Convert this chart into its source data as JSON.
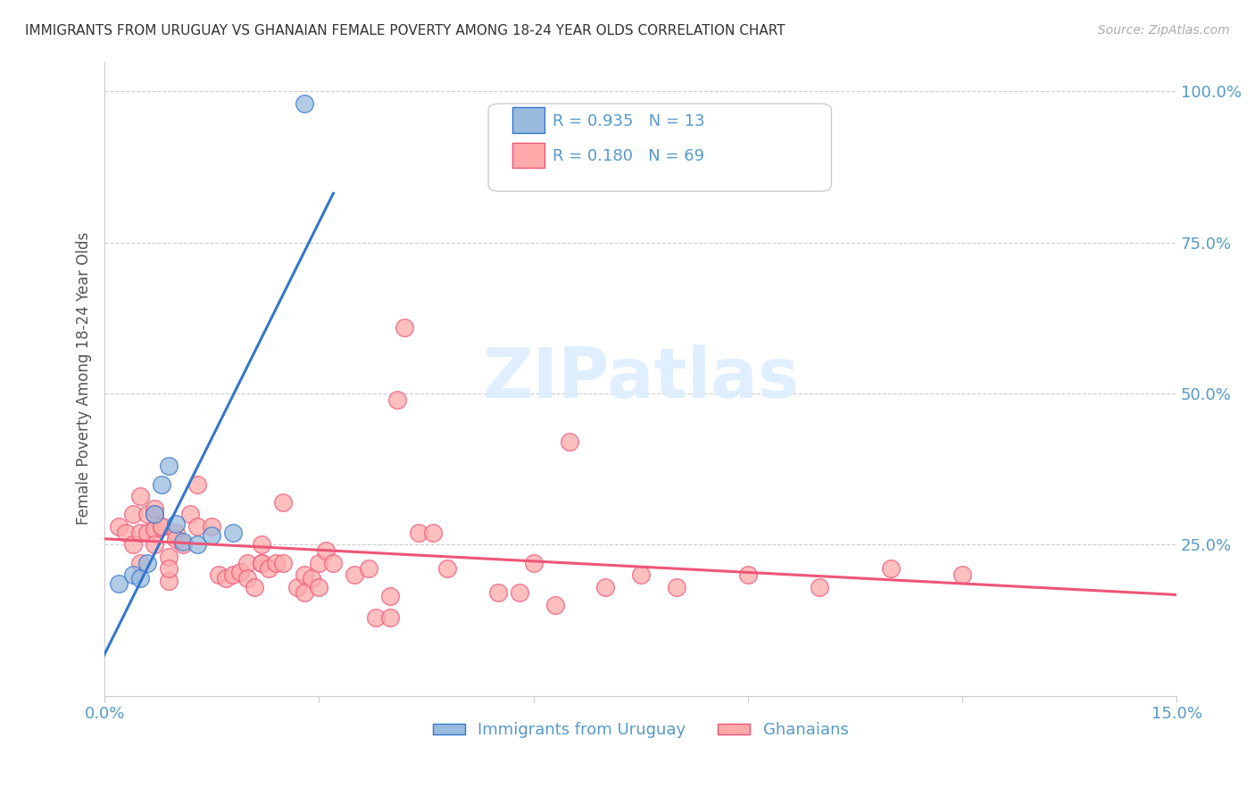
{
  "title": "IMMIGRANTS FROM URUGUAY VS GHANAIAN FEMALE POVERTY AMONG 18-24 YEAR OLDS CORRELATION CHART",
  "source": "Source: ZipAtlas.com",
  "ylabel": "Female Poverty Among 18-24 Year Olds",
  "right_ytick_labels": [
    "100.0%",
    "75.0%",
    "50.0%",
    "25.0%"
  ],
  "right_ytick_vals": [
    1.0,
    0.75,
    0.5,
    0.25
  ],
  "xlim": [
    0.0,
    0.15
  ],
  "ylim": [
    0.0,
    1.05
  ],
  "legend1_label": "Immigrants from Uruguay",
  "legend2_label": "Ghanaians",
  "R1": 0.935,
  "N1": 13,
  "R2": 0.18,
  "N2": 69,
  "blue_color": "#99BBDD",
  "pink_color": "#FFAAAA",
  "line_blue": "#3377CC",
  "line_pink": "#EE5577",
  "axis_color": "#5599CC",
  "watermark": "ZIPatlas",
  "blue_scatter_x": [
    0.002,
    0.004,
    0.005,
    0.006,
    0.007,
    0.008,
    0.009,
    0.01,
    0.011,
    0.013,
    0.015,
    0.018,
    0.028
  ],
  "blue_scatter_y": [
    0.185,
    0.2,
    0.195,
    0.22,
    0.3,
    0.35,
    0.38,
    0.285,
    0.255,
    0.25,
    0.265,
    0.27,
    0.98
  ],
  "pink_scatter_x": [
    0.002,
    0.003,
    0.004,
    0.004,
    0.005,
    0.005,
    0.005,
    0.006,
    0.006,
    0.007,
    0.007,
    0.007,
    0.007,
    0.008,
    0.008,
    0.009,
    0.009,
    0.009,
    0.01,
    0.01,
    0.011,
    0.012,
    0.013,
    0.013,
    0.015,
    0.016,
    0.017,
    0.018,
    0.019,
    0.02,
    0.02,
    0.021,
    0.022,
    0.022,
    0.022,
    0.023,
    0.024,
    0.025,
    0.025,
    0.027,
    0.028,
    0.028,
    0.029,
    0.03,
    0.03,
    0.031,
    0.032,
    0.035,
    0.037,
    0.038,
    0.04,
    0.04,
    0.041,
    0.042,
    0.044,
    0.046,
    0.048,
    0.055,
    0.058,
    0.06,
    0.063,
    0.065,
    0.07,
    0.075,
    0.08,
    0.09,
    0.1,
    0.11,
    0.12
  ],
  "pink_scatter_y": [
    0.28,
    0.27,
    0.3,
    0.25,
    0.33,
    0.27,
    0.22,
    0.3,
    0.27,
    0.275,
    0.3,
    0.25,
    0.31,
    0.28,
    0.28,
    0.23,
    0.19,
    0.21,
    0.27,
    0.26,
    0.25,
    0.3,
    0.28,
    0.35,
    0.28,
    0.2,
    0.195,
    0.2,
    0.205,
    0.22,
    0.195,
    0.18,
    0.25,
    0.22,
    0.22,
    0.21,
    0.22,
    0.32,
    0.22,
    0.18,
    0.2,
    0.17,
    0.195,
    0.22,
    0.18,
    0.24,
    0.22,
    0.2,
    0.21,
    0.13,
    0.13,
    0.165,
    0.49,
    0.61,
    0.27,
    0.27,
    0.21,
    0.17,
    0.17,
    0.22,
    0.15,
    0.42,
    0.18,
    0.2,
    0.18,
    0.2,
    0.18,
    0.21,
    0.2
  ],
  "grid_vals": [
    0.25,
    0.5,
    0.75,
    1.0
  ]
}
